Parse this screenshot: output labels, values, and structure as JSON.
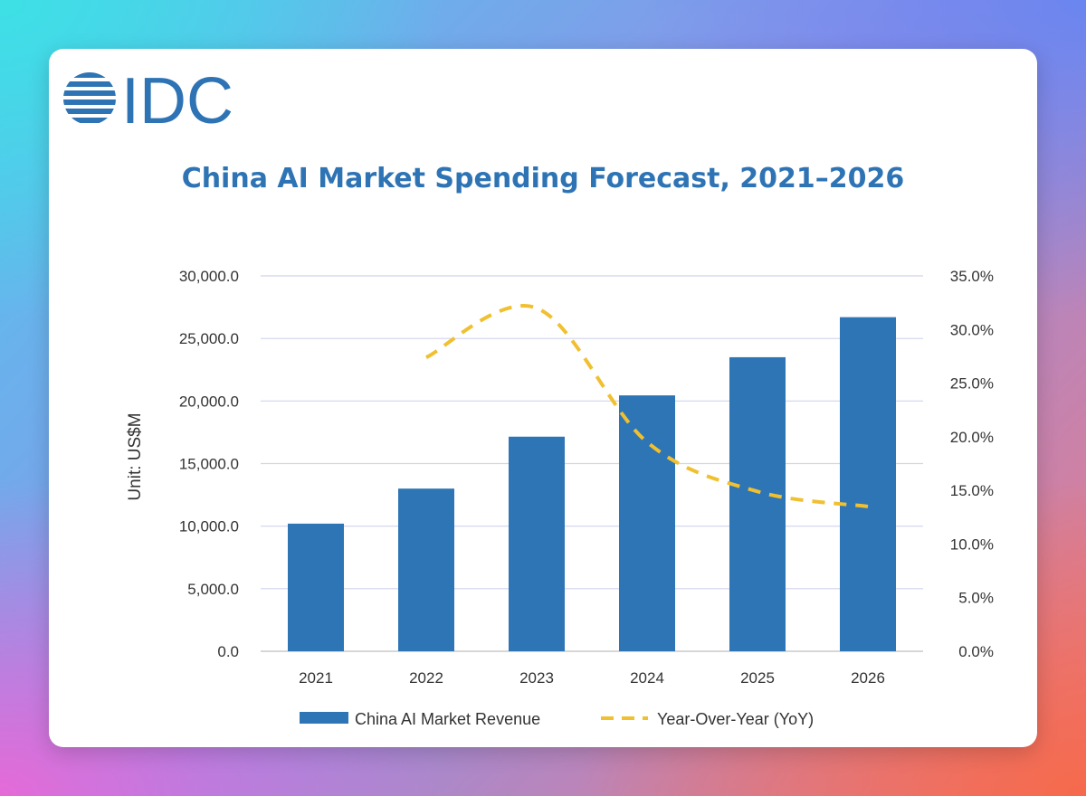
{
  "logo": {
    "text": "IDC",
    "color": "#2e74b5"
  },
  "chart_data": {
    "type": "bar",
    "title": "China AI Market Spending Forecast, 2021–2026",
    "ylabel": "Unit: US$M",
    "xlabel": "",
    "categories": [
      "2021",
      "2022",
      "2023",
      "2024",
      "2025",
      "2026"
    ],
    "ylim": [
      0,
      30000
    ],
    "y2lim": [
      0,
      35
    ],
    "yticks": [
      "0.0",
      "5,000.0",
      "10,000.0",
      "15,000.0",
      "20,000.0",
      "25,000.0",
      "30,000.0"
    ],
    "y2ticks": [
      "0.0%",
      "5.0%",
      "10.0%",
      "15.0%",
      "20.0%",
      "25.0%",
      "30.0%",
      "35.0%"
    ],
    "grid": true,
    "legend_position": "bottom",
    "series": [
      {
        "name": "China AI Market Revenue",
        "type": "bar",
        "axis": "left",
        "color": "#2e75b6",
        "values": [
          10200,
          13000,
          17150,
          20450,
          23500,
          26700
        ]
      },
      {
        "name": "Year-Over-Year (YoY)",
        "type": "line",
        "style": "dashed",
        "axis": "right",
        "color": "#f0c030",
        "values": [
          null,
          27.4,
          32.0,
          19.5,
          14.9,
          13.5
        ]
      }
    ]
  }
}
